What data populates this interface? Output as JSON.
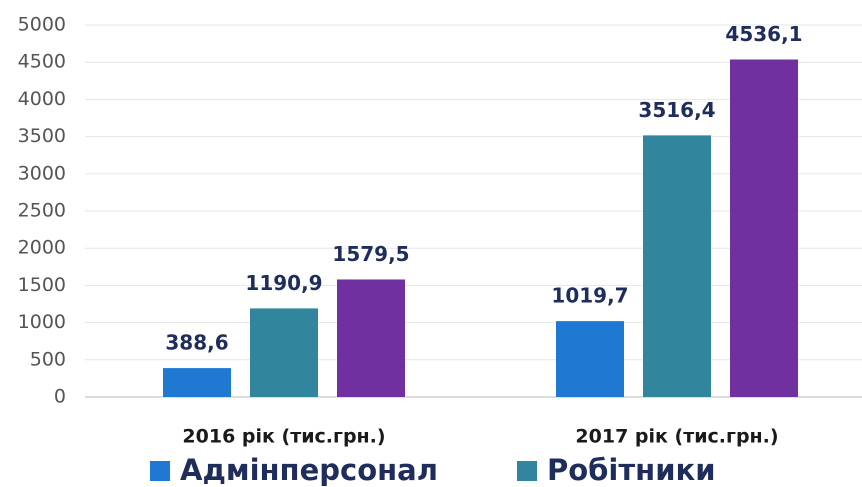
{
  "chart_data": {
    "type": "bar",
    "categories": [
      "2016 рік (тис.грн.)",
      "2017 рік (тис.грн.)"
    ],
    "series": [
      {
        "name": "Адмінперсонал",
        "color": "#1f78d1",
        "values": [
          388.6,
          1019.7
        ],
        "value_labels": [
          "388,6",
          "1019,7"
        ]
      },
      {
        "name": "Робітники",
        "color": "#31859c",
        "values": [
          1190.9,
          3516.4
        ],
        "value_labels": [
          "1190,9",
          "3516,4"
        ]
      },
      {
        "color": "#7030a0",
        "values": [
          1579.5,
          4536.1
        ],
        "value_labels": [
          "1579,5",
          "4536,1"
        ]
      }
    ],
    "ylim": [
      0,
      5000
    ],
    "yticks": [
      0,
      500,
      1000,
      1500,
      2000,
      2500,
      3000,
      3500,
      4000,
      4500,
      5000
    ],
    "grid": true
  }
}
